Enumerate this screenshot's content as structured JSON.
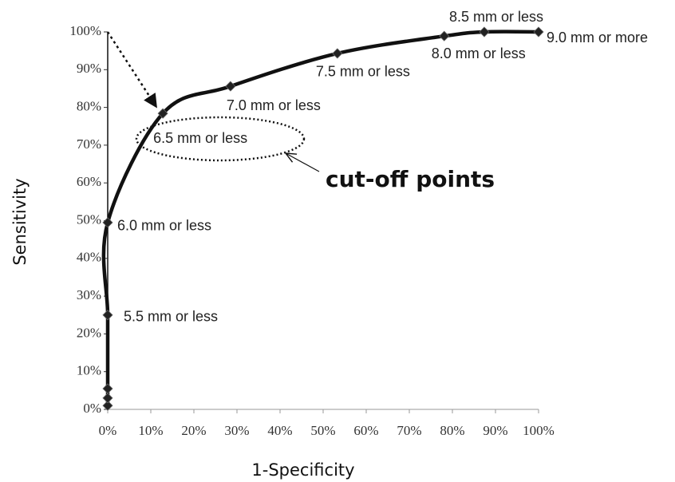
{
  "chart_data": {
    "type": "line",
    "xlabel": "1-Specificity",
    "ylabel": "Sensitivity",
    "annotation": "cut-off points",
    "series": [
      {
        "color": "#111111",
        "x": [
          0,
          0,
          0,
          0,
          0,
          12.8,
          28.5,
          53.3,
          78.1,
          87.4,
          100
        ],
        "values": [
          1,
          3,
          5.5,
          25,
          49.5,
          78.4,
          85.6,
          94.3,
          98.9,
          100,
          100
        ],
        "point_labels": [
          null,
          null,
          null,
          "5.5 mm or less",
          "6.0 mm or less",
          "6.5 mm or less",
          "7.0 mm or less",
          "7.5 mm or less",
          "8.0 mm or less",
          "8.5 mm or less",
          "9.0 mm or more"
        ]
      }
    ],
    "xlim": [
      0,
      100
    ],
    "ylim": [
      0,
      100
    ],
    "xticks": [
      {
        "value": 0,
        "label": "0%"
      },
      {
        "value": 10,
        "label": "10%"
      },
      {
        "value": 20,
        "label": "20%"
      },
      {
        "value": 30,
        "label": "30%"
      },
      {
        "value": 40,
        "label": "40%"
      },
      {
        "value": 50,
        "label": "50%"
      },
      {
        "value": 60,
        "label": "60%"
      },
      {
        "value": 70,
        "label": "70%"
      },
      {
        "value": 80,
        "label": "80%"
      },
      {
        "value": 90,
        "label": "90%"
      },
      {
        "value": 100,
        "label": "100%"
      }
    ],
    "yticks": [
      {
        "value": 0,
        "label": "0%"
      },
      {
        "value": 10,
        "label": "10%"
      },
      {
        "value": 20,
        "label": "20%"
      },
      {
        "value": 30,
        "label": "30%"
      },
      {
        "value": 40,
        "label": "40%"
      },
      {
        "value": 50,
        "label": "50%"
      },
      {
        "value": 60,
        "label": "60%"
      },
      {
        "value": 70,
        "label": "70%"
      },
      {
        "value": 80,
        "label": "80%"
      },
      {
        "value": 90,
        "label": "90%"
      },
      {
        "value": 100,
        "label": "100%"
      }
    ],
    "grid": false
  }
}
